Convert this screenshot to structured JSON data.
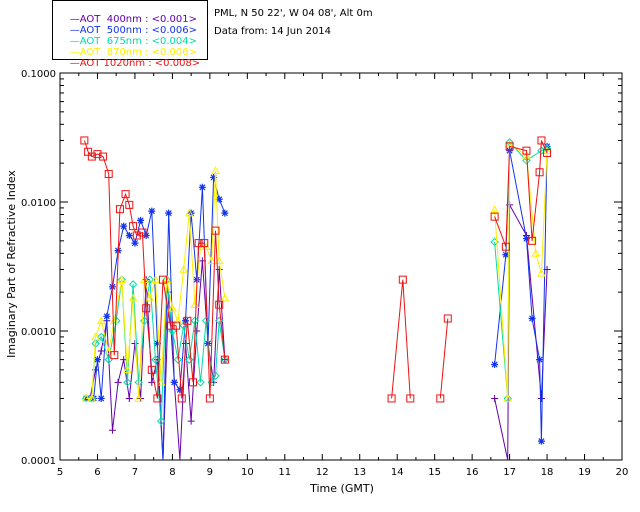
{
  "header": {
    "location": "PML, N 50 22', W 04 08', Alt 0m",
    "date_line": "Data from: 14 Jun 2014"
  },
  "legend": [
    {
      "label": "AOT  400nm : <0.001>",
      "color": "#6600aa"
    },
    {
      "label": "AOT  500nm : <0.006>",
      "color": "#1133ee"
    },
    {
      "label": "AOT  675nm : <0.004>",
      "color": "#00ddaa"
    },
    {
      "label": "AOT  870nm : <0.006>",
      "color": "#ffee00"
    },
    {
      "label": "AOT 1020nm : <0.008>",
      "color": "#ee1111"
    }
  ],
  "chart_data": {
    "type": "line",
    "xlabel": "Time (GMT)",
    "ylabel": "Imaginary Part of Refractive Index",
    "xlim": [
      5,
      20
    ],
    "ylim": [
      0.0001,
      0.1
    ],
    "yscale": "log",
    "xticks": [
      5,
      6,
      7,
      8,
      9,
      10,
      11,
      12,
      13,
      14,
      15,
      16,
      17,
      18,
      19,
      20
    ],
    "yticks": [
      {
        "value": 0.0001,
        "label": "0.0001"
      },
      {
        "value": 0.001,
        "label": "0.0010"
      },
      {
        "value": 0.01,
        "label": "0.0100"
      },
      {
        "value": 0.1,
        "label": "0.1000"
      }
    ],
    "series": [
      {
        "name": "AOT  400nm : <0.001>",
        "color": "#6600aa",
        "marker": "plus",
        "segments": [
          [
            [
              5.7,
              0.0003
            ],
            [
              5.8,
              0.0003
            ],
            [
              5.95,
              0.0005
            ],
            [
              6.1,
              0.0007
            ],
            [
              6.25,
              0.0012
            ],
            [
              6.4,
              0.00017
            ],
            [
              6.55,
              0.0004
            ],
            [
              6.7,
              0.0006
            ],
            [
              6.85,
              0.0003
            ],
            [
              7.0,
              0.0008
            ],
            [
              7.15,
              0.0003
            ],
            [
              7.3,
              0.0025
            ],
            [
              7.45,
              0.0004
            ],
            [
              7.6,
              0.0006
            ],
            [
              7.75,
              0.0001
            ],
            [
              7.9,
              0.002
            ],
            [
              8.05,
              0.0004
            ],
            [
              8.2,
              0.0001
            ],
            [
              8.35,
              0.0008
            ],
            [
              8.5,
              0.0002
            ],
            [
              8.65,
              0.001
            ],
            [
              8.8,
              0.0035
            ],
            [
              8.95,
              0.0008
            ],
            [
              9.1,
              0.0004
            ],
            [
              9.25,
              0.003
            ],
            [
              9.4,
              0.0006
            ]
          ],
          [
            [
              16.6,
              0.0003
            ],
            [
              16.95,
              0.0001
            ],
            [
              17.0,
              0.0095
            ],
            [
              17.45,
              0.0055
            ],
            [
              17.85,
              0.0003
            ],
            [
              18.0,
              0.003
            ]
          ]
        ]
      },
      {
        "name": "AOT  500nm : <0.006>",
        "color": "#1133ee",
        "marker": "star",
        "segments": [
          [
            [
              5.7,
              0.0003
            ],
            [
              5.9,
              0.0003
            ],
            [
              6.0,
              0.0006
            ],
            [
              6.1,
              0.0003
            ],
            [
              6.25,
              0.0013
            ],
            [
              6.4,
              0.0022
            ],
            [
              6.55,
              0.0042
            ],
            [
              6.7,
              0.0065
            ],
            [
              6.85,
              0.0055
            ],
            [
              7.0,
              0.0048
            ],
            [
              7.15,
              0.0072
            ],
            [
              7.3,
              0.0055
            ],
            [
              7.45,
              0.0085
            ],
            [
              7.6,
              0.0008
            ],
            [
              7.75,
              0.0001
            ],
            [
              7.9,
              0.0082
            ],
            [
              8.05,
              0.0004
            ],
            [
              8.2,
              0.00035
            ],
            [
              8.35,
              0.0012
            ],
            [
              8.5,
              0.0082
            ],
            [
              8.65,
              0.0025
            ],
            [
              8.8,
              0.013
            ],
            [
              8.95,
              0.0008
            ],
            [
              9.1,
              0.0155
            ],
            [
              9.25,
              0.0105
            ],
            [
              9.4,
              0.0082
            ]
          ],
          [
            [
              16.6,
              0.00055
            ],
            [
              16.9,
              0.0039
            ],
            [
              17.0,
              0.025
            ],
            [
              17.45,
              0.0052
            ],
            [
              17.6,
              0.00125
            ],
            [
              17.8,
              0.0006
            ],
            [
              17.85,
              0.00014
            ],
            [
              18.0,
              0.027
            ]
          ]
        ]
      },
      {
        "name": "AOT  675nm : <0.004>",
        "color": "#00ddaa",
        "marker": "diamond",
        "segments": [
          [
            [
              5.7,
              0.0003
            ],
            [
              5.85,
              0.0003
            ],
            [
              5.95,
              0.0008
            ],
            [
              6.1,
              0.0009
            ],
            [
              6.3,
              0.0006
            ],
            [
              6.5,
              0.0012
            ],
            [
              6.65,
              0.0025
            ],
            [
              6.8,
              0.0004
            ],
            [
              6.95,
              0.0023
            ],
            [
              7.1,
              0.0004
            ],
            [
              7.25,
              0.0012
            ],
            [
              7.4,
              0.0025
            ],
            [
              7.55,
              0.0006
            ],
            [
              7.7,
              0.0002
            ],
            [
              7.85,
              0.0025
            ],
            [
              8.0,
              0.001
            ],
            [
              8.15,
              0.0006
            ],
            [
              8.3,
              0.0011
            ],
            [
              8.45,
              0.0006
            ],
            [
              8.6,
              0.0012
            ],
            [
              8.75,
              0.0004
            ],
            [
              8.9,
              0.0012
            ],
            [
              9.05,
              0.0004
            ],
            [
              9.15,
              0.00045
            ],
            [
              9.25,
              0.0012
            ],
            [
              9.4,
              0.0006
            ]
          ],
          [
            [
              16.6,
              0.0049
            ],
            [
              16.95,
              0.0003
            ],
            [
              17.0,
              0.029
            ],
            [
              17.45,
              0.021
            ],
            [
              17.85,
              0.025
            ],
            [
              18.0,
              0.026
            ]
          ]
        ]
      },
      {
        "name": "AOT  870nm : <0.006>",
        "color": "#ffee00",
        "marker": "triangle",
        "segments": [
          [
            [
              5.7,
              0.0003
            ],
            [
              5.85,
              0.0003
            ],
            [
              5.95,
              0.0009
            ],
            [
              6.1,
              0.0012
            ],
            [
              6.3,
              0.0007
            ],
            [
              6.45,
              0.0012
            ],
            [
              6.65,
              0.0025
            ],
            [
              6.8,
              0.0005
            ],
            [
              6.95,
              0.0018
            ],
            [
              7.1,
              0.0003
            ],
            [
              7.25,
              0.0025
            ],
            [
              7.4,
              0.0018
            ],
            [
              7.55,
              0.0025
            ],
            [
              7.7,
              0.0004
            ],
            [
              7.85,
              0.0025
            ],
            [
              8.0,
              0.0015
            ],
            [
              8.15,
              0.0012
            ],
            [
              8.3,
              0.003
            ],
            [
              8.45,
              0.0082
            ],
            [
              8.6,
              0.0016
            ],
            [
              8.75,
              0.0045
            ],
            [
              8.9,
              0.0045
            ],
            [
              9.05,
              0.0035
            ],
            [
              9.15,
              0.0175
            ],
            [
              9.25,
              0.0035
            ],
            [
              9.4,
              0.0018
            ]
          ],
          [
            [
              16.6,
              0.0087
            ],
            [
              16.95,
              0.0003
            ],
            [
              17.0,
              0.028
            ],
            [
              17.45,
              0.023
            ],
            [
              17.7,
              0.004
            ],
            [
              17.85,
              0.0028
            ],
            [
              18.0,
              0.025
            ]
          ]
        ]
      },
      {
        "name": "AOT 1020nm : <0.008>",
        "color": "#ee1111",
        "marker": "square",
        "segments": [
          [
            [
              5.65,
              0.03
            ],
            [
              5.75,
              0.0245
            ],
            [
              5.85,
              0.0225
            ],
            [
              6.0,
              0.0235
            ],
            [
              6.15,
              0.0225
            ],
            [
              6.3,
              0.0165
            ],
            [
              6.45,
              0.00065
            ],
            [
              6.6,
              0.0088
            ],
            [
              6.75,
              0.0115
            ],
            [
              6.85,
              0.0095
            ],
            [
              6.95,
              0.0065
            ],
            [
              7.05,
              0.0055
            ],
            [
              7.2,
              0.0058
            ],
            [
              7.3,
              0.0015
            ],
            [
              7.45,
              0.0005
            ],
            [
              7.6,
              0.0003
            ],
            [
              7.75,
              0.0025
            ],
            [
              7.95,
              0.0011
            ],
            [
              8.1,
              0.0011
            ],
            [
              8.25,
              0.0003
            ],
            [
              8.4,
              0.0012
            ],
            [
              8.55,
              0.0004
            ],
            [
              8.7,
              0.0048
            ],
            [
              8.85,
              0.0048
            ],
            [
              9.0,
              0.0003
            ],
            [
              9.15,
              0.006
            ],
            [
              9.25,
              0.0016
            ],
            [
              9.4,
              0.0006
            ]
          ],
          [
            [
              13.85,
              0.0003
            ],
            [
              14.15,
              0.0025
            ],
            [
              14.35,
              0.0003
            ]
          ],
          [
            [
              15.15,
              0.0003
            ],
            [
              15.35,
              0.00125
            ]
          ],
          [
            [
              16.6,
              0.0077
            ],
            [
              16.9,
              0.0045
            ],
            [
              17.0,
              0.027
            ],
            [
              17.45,
              0.025
            ],
            [
              17.6,
              0.005
            ],
            [
              17.8,
              0.017
            ],
            [
              17.85,
              0.03
            ],
            [
              18.0,
              0.024
            ]
          ]
        ]
      }
    ]
  }
}
